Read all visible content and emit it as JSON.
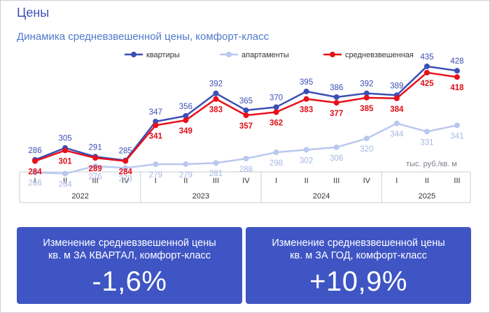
{
  "page": {
    "title": "Цены"
  },
  "chart_data": {
    "type": "line",
    "title": "Динамика средневзвешенной цены, комфорт-класс",
    "unit_label": "тыс. руб./кв. м",
    "categories": [
      "I",
      "II",
      "III",
      "IV",
      "I",
      "II",
      "III",
      "IV",
      "I",
      "II",
      "III",
      "IV",
      "I",
      "II",
      "III"
    ],
    "years": [
      {
        "label": "2022",
        "quarters": 4
      },
      {
        "label": "2023",
        "quarters": 4
      },
      {
        "label": "2024",
        "quarters": 4
      },
      {
        "label": "2025",
        "quarters": 3
      }
    ],
    "ylim": [
      210,
      455
    ],
    "legend_position": "top-right",
    "series": [
      {
        "name": "квартиры",
        "color": "#3b4fb5",
        "label_color": "#3b4fb5",
        "label_bold": false,
        "label_side": "above",
        "values": [
          286,
          305,
          291,
          285,
          347,
          356,
          392,
          365,
          370,
          395,
          386,
          392,
          389,
          435,
          428
        ]
      },
      {
        "name": "апартаменты",
        "color": "#b9c8ef",
        "label_color": "#a6b7e2",
        "label_bold": false,
        "label_side": "below",
        "values": [
          266,
          264,
          276,
          273,
          279,
          279,
          281,
          288,
          298,
          302,
          306,
          320,
          344,
          331,
          341
        ]
      },
      {
        "name": "средневзвешенная",
        "color": "#e8101a",
        "label_color": "#e00e16",
        "label_bold": true,
        "label_side": "below",
        "values": [
          284,
          301,
          289,
          284,
          341,
          349,
          383,
          357,
          362,
          383,
          377,
          385,
          384,
          425,
          418
        ]
      }
    ]
  },
  "cards": [
    {
      "label": "Изменение средневзвешенной цены\nкв. м ЗА КВАРТАЛ, комфорт-класс",
      "value": "-1,6%"
    },
    {
      "label": "Изменение средневзвешенной цены\nкв. м ЗА ГОД, комфорт-класс",
      "value": "+10,9%"
    }
  ]
}
